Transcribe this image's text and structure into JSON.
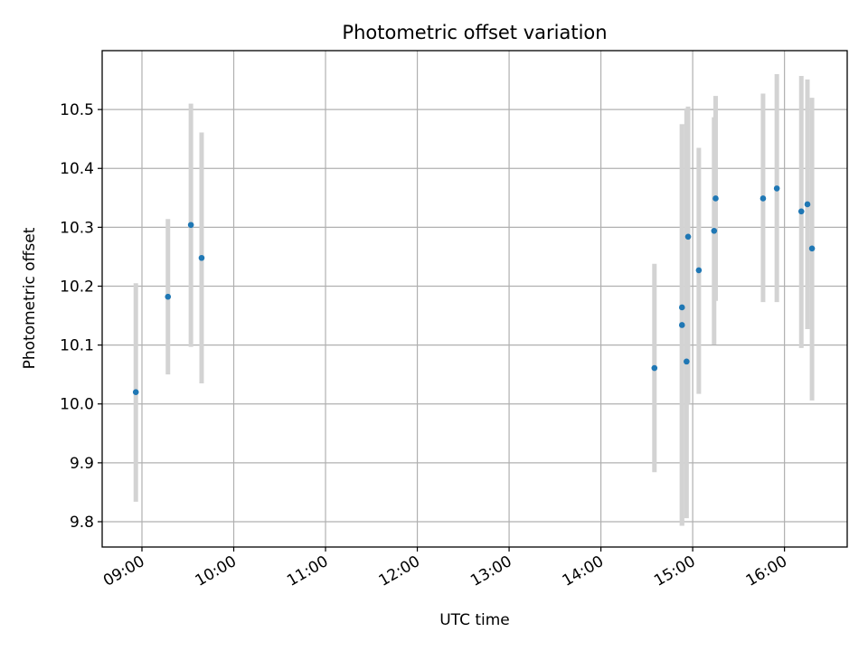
{
  "chart_data": {
    "type": "scatter",
    "title": "Photometric offset variation",
    "xlabel": "UTC time",
    "ylabel": "Photometric offset",
    "x_axis": {
      "kind": "time",
      "range": [
        "08:34",
        "16:41"
      ],
      "ticks": [
        "09:00",
        "10:00",
        "11:00",
        "12:00",
        "13:00",
        "14:00",
        "15:00",
        "16:00"
      ]
    },
    "y_axis": {
      "range": [
        9.757,
        10.6
      ],
      "ticks": [
        9.8,
        9.9,
        10.0,
        10.1,
        10.2,
        10.3,
        10.4,
        10.5
      ],
      "tick_labels": [
        "9.8",
        "9.9",
        "10.0",
        "10.1",
        "10.2",
        "10.3",
        "10.4",
        "10.5"
      ]
    },
    "grid": true,
    "colors": {
      "marker": "#1f77b4",
      "errorbar": "#d3d3d3",
      "grid": "#b0b0b0"
    },
    "series": [
      {
        "points": [
          {
            "x": "08:56",
            "y": 10.02,
            "ylow": 9.834,
            "yhigh": 10.205
          },
          {
            "x": "09:17",
            "y": 10.182,
            "ylow": 10.05,
            "yhigh": 10.314
          },
          {
            "x": "09:32",
            "y": 10.304,
            "ylow": 10.097,
            "yhigh": 10.51
          },
          {
            "x": "09:39",
            "y": 10.248,
            "ylow": 10.035,
            "yhigh": 10.461
          },
          {
            "x": "14:35",
            "y": 10.061,
            "ylow": 9.884,
            "yhigh": 10.238
          },
          {
            "x": "14:53",
            "y": 10.134,
            "ylow": 9.793,
            "yhigh": 10.475
          },
          {
            "x": "14:53",
            "y": 10.164,
            "ylow": 9.793,
            "yhigh": 10.475
          },
          {
            "x": "14:56",
            "y": 10.072,
            "ylow": 9.806,
            "yhigh": 10.502
          },
          {
            "x": "14:57",
            "y": 10.284,
            "ylow": 10.0,
            "yhigh": 10.505
          },
          {
            "x": "15:04",
            "y": 10.227,
            "ylow": 10.017,
            "yhigh": 10.435
          },
          {
            "x": "15:14",
            "y": 10.294,
            "ylow": 10.101,
            "yhigh": 10.487
          },
          {
            "x": "15:15",
            "y": 10.349,
            "ylow": 10.175,
            "yhigh": 10.523
          },
          {
            "x": "15:46",
            "y": 10.349,
            "ylow": 10.173,
            "yhigh": 10.527
          },
          {
            "x": "15:55",
            "y": 10.366,
            "ylow": 10.173,
            "yhigh": 10.56
          },
          {
            "x": "16:11",
            "y": 10.327,
            "ylow": 10.095,
            "yhigh": 10.557
          },
          {
            "x": "16:15",
            "y": 10.339,
            "ylow": 10.127,
            "yhigh": 10.551
          },
          {
            "x": "16:18",
            "y": 10.264,
            "ylow": 10.006,
            "yhigh": 10.52
          }
        ]
      }
    ]
  }
}
